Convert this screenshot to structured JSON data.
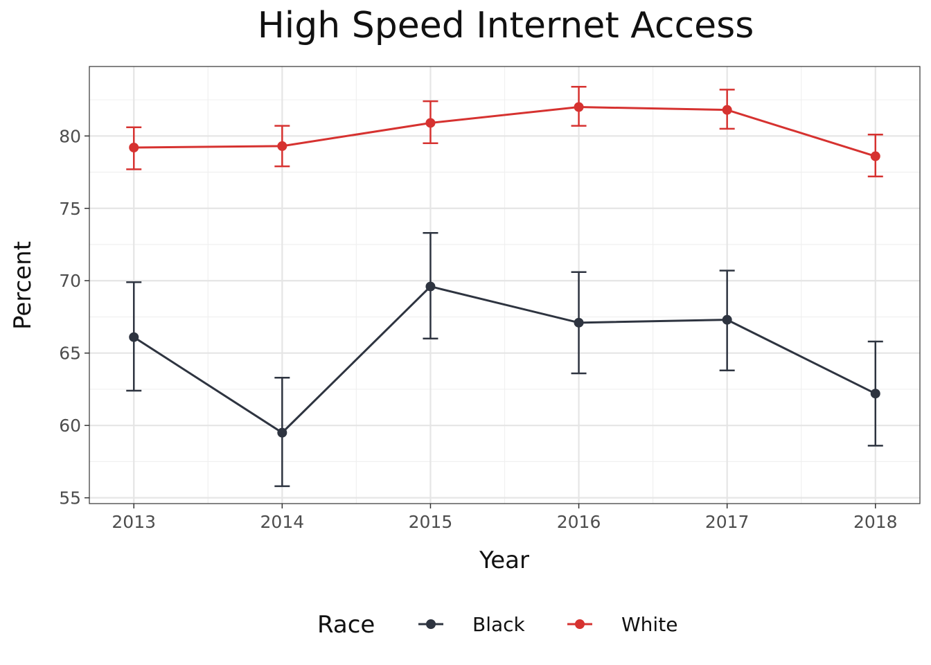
{
  "chart_data": {
    "type": "line",
    "title": "High Speed Internet Access",
    "xlabel": "Year",
    "ylabel": "Percent",
    "x": [
      2013,
      2014,
      2015,
      2016,
      2017,
      2018
    ],
    "xlim": [
      2012.7,
      2018.3
    ],
    "ylim": [
      54.6,
      84.8
    ],
    "y_ticks": [
      55,
      60,
      65,
      70,
      75,
      80
    ],
    "grid": true,
    "legend": {
      "title": "Race",
      "placement": "bottom"
    },
    "series": [
      {
        "name": "Black",
        "color": "#2e3440",
        "values": [
          66.1,
          59.5,
          69.6,
          67.1,
          67.3,
          62.2
        ],
        "lower": [
          62.4,
          55.8,
          66.0,
          63.6,
          63.8,
          58.6
        ],
        "upper": [
          69.9,
          63.3,
          73.3,
          70.6,
          70.7,
          65.8
        ]
      },
      {
        "name": "White",
        "color": "#d63230",
        "values": [
          79.2,
          79.3,
          80.9,
          82.0,
          81.8,
          78.6
        ],
        "lower": [
          77.7,
          77.9,
          79.5,
          80.7,
          80.5,
          77.2
        ],
        "upper": [
          80.6,
          80.7,
          82.4,
          83.4,
          83.2,
          80.1
        ]
      }
    ]
  }
}
